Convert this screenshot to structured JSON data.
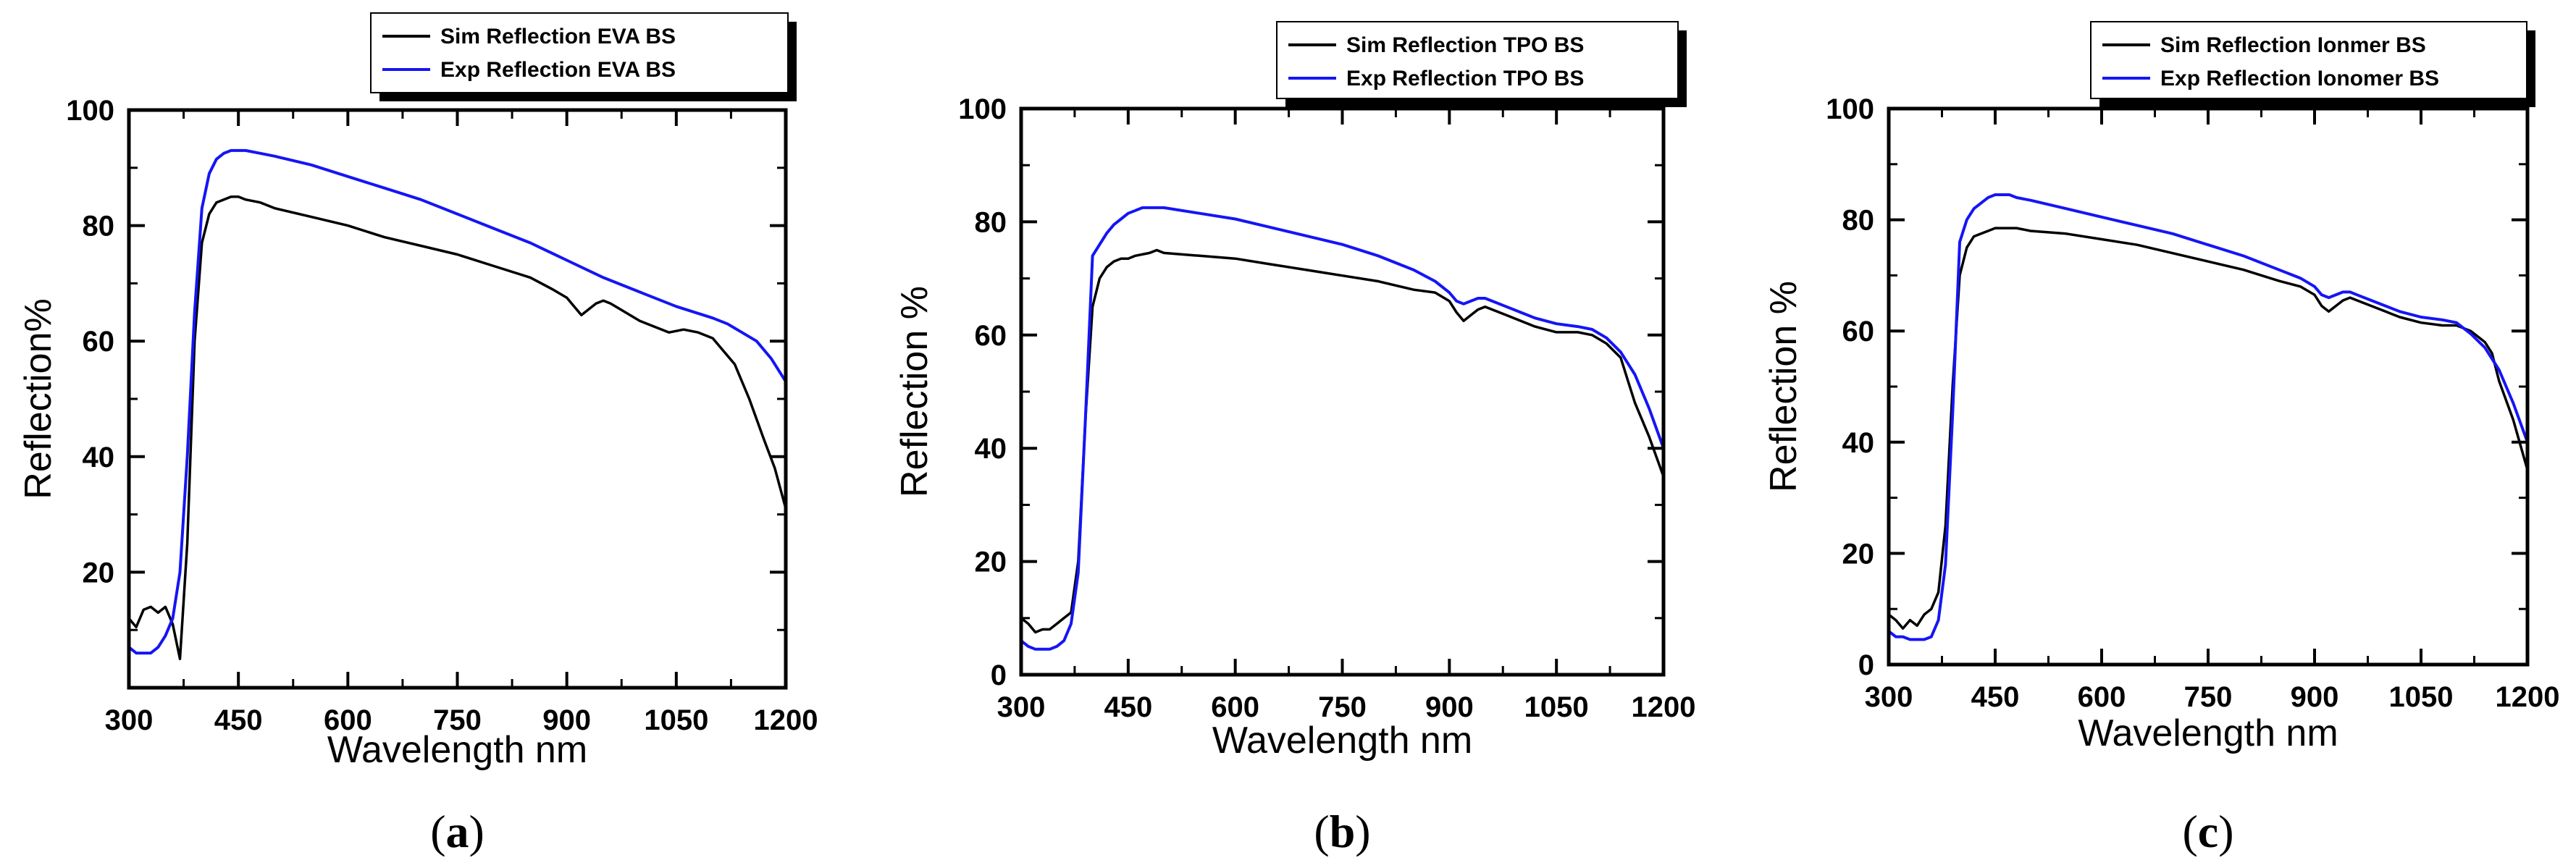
{
  "figure": {
    "panel_labels": [
      "a",
      "b",
      "c"
    ]
  },
  "colors": {
    "sim": "#000000",
    "exp": "#1515f5",
    "axis": "#000000"
  },
  "chart_data": [
    {
      "type": "line",
      "panel": "a",
      "xlabel": "Wavelength nm",
      "ylabel": "Reflection%",
      "xlim": [
        300,
        1200
      ],
      "ylim": [
        0,
        100
      ],
      "xticks": [
        300,
        450,
        600,
        750,
        900,
        1050,
        1200
      ],
      "yticks": [
        0,
        20,
        40,
        60,
        80,
        100
      ],
      "ytick_labels": [
        "",
        "20",
        "40",
        "60",
        "80",
        "100"
      ],
      "legend": [
        "Sim Reflection EVA BS",
        "Exp Reflection EVA BS"
      ],
      "series": [
        {
          "name": "Sim Reflection EVA BS",
          "x": [
            300,
            310,
            320,
            330,
            340,
            350,
            360,
            370,
            380,
            390,
            400,
            410,
            420,
            430,
            440,
            450,
            460,
            480,
            500,
            550,
            600,
            650,
            700,
            750,
            800,
            850,
            880,
            900,
            910,
            920,
            930,
            940,
            950,
            960,
            980,
            1000,
            1020,
            1040,
            1060,
            1080,
            1100,
            1110,
            1130,
            1150,
            1170,
            1185,
            1200
          ],
          "y": [
            12,
            10.5,
            13.5,
            14,
            13,
            14,
            11,
            5,
            25,
            60,
            77,
            82,
            84,
            84.5,
            85,
            85,
            84.5,
            84,
            83,
            81.5,
            80,
            78,
            76.5,
            75,
            73,
            71,
            69,
            67.5,
            66,
            64.5,
            65.5,
            66.5,
            67,
            66.5,
            65,
            63.5,
            62.5,
            61.5,
            62,
            61.5,
            60.5,
            59,
            56,
            50,
            43,
            38,
            31
          ]
        },
        {
          "name": "Exp Reflection EVA BS",
          "x": [
            300,
            310,
            320,
            330,
            340,
            350,
            360,
            370,
            380,
            390,
            400,
            410,
            420,
            430,
            440,
            450,
            460,
            480,
            500,
            550,
            600,
            650,
            700,
            750,
            800,
            850,
            900,
            950,
            1000,
            1050,
            1100,
            1120,
            1140,
            1160,
            1180,
            1200
          ],
          "y": [
            7,
            6,
            6,
            6,
            7,
            9,
            12,
            20,
            40,
            65,
            83,
            89,
            91.5,
            92.5,
            93,
            93,
            93,
            92.5,
            92,
            90.5,
            88.5,
            86.5,
            84.5,
            82,
            79.5,
            77,
            74,
            71,
            68.5,
            66,
            64,
            63,
            61.5,
            60,
            57,
            53
          ]
        }
      ]
    },
    {
      "type": "line",
      "panel": "b",
      "xlabel": "Wavelength nm",
      "ylabel": "Reflection %",
      "xlim": [
        300,
        1200
      ],
      "ylim": [
        0,
        100
      ],
      "xticks": [
        300,
        450,
        600,
        750,
        900,
        1050,
        1200
      ],
      "yticks": [
        0,
        20,
        40,
        60,
        80,
        100
      ],
      "ytick_labels": [
        "0",
        "20",
        "40",
        "60",
        "80",
        "100"
      ],
      "legend": [
        "Sim Reflection TPO BS",
        "Exp Reflection TPO BS"
      ],
      "series": [
        {
          "name": "Sim Reflection TPO BS",
          "x": [
            300,
            310,
            320,
            330,
            340,
            350,
            360,
            370,
            380,
            390,
            400,
            410,
            420,
            430,
            440,
            450,
            460,
            480,
            490,
            500,
            550,
            600,
            650,
            700,
            750,
            800,
            850,
            880,
            900,
            910,
            920,
            930,
            940,
            950,
            960,
            980,
            1000,
            1020,
            1050,
            1080,
            1100,
            1120,
            1140,
            1150,
            1160,
            1180,
            1200
          ],
          "y": [
            10,
            9,
            7.5,
            8,
            8,
            9,
            10,
            11,
            20,
            45,
            65,
            70,
            72,
            73,
            73.5,
            73.5,
            74,
            74.5,
            75,
            74.5,
            74,
            73.5,
            72.5,
            71.5,
            70.5,
            69.5,
            68,
            67.5,
            66,
            64,
            62.5,
            63.5,
            64.5,
            65,
            64.5,
            63.5,
            62.5,
            61.5,
            60.5,
            60.5,
            60,
            58.5,
            56,
            52,
            48,
            42,
            35
          ]
        },
        {
          "name": "Exp Reflection TPO BS",
          "x": [
            300,
            310,
            320,
            330,
            340,
            350,
            360,
            370,
            380,
            390,
            400,
            410,
            420,
            430,
            440,
            450,
            460,
            470,
            480,
            500,
            550,
            600,
            650,
            700,
            750,
            800,
            850,
            880,
            900,
            910,
            920,
            930,
            940,
            950,
            960,
            980,
            1000,
            1020,
            1050,
            1080,
            1100,
            1120,
            1140,
            1160,
            1180,
            1200
          ],
          "y": [
            6,
            5,
            4.5,
            4.5,
            4.5,
            5,
            6,
            9,
            18,
            45,
            74,
            76,
            78,
            79.5,
            80.5,
            81.5,
            82,
            82.5,
            82.5,
            82.5,
            81.5,
            80.5,
            79,
            77.5,
            76,
            74,
            71.5,
            69.5,
            67.5,
            66,
            65.5,
            66,
            66.5,
            66.5,
            66,
            65,
            64,
            63,
            62,
            61.5,
            61,
            59.5,
            57,
            53,
            47,
            40
          ]
        }
      ]
    },
    {
      "type": "line",
      "panel": "c",
      "xlabel": "Wavelength nm",
      "ylabel": "Reflection %",
      "xlim": [
        300,
        1200
      ],
      "ylim": [
        0,
        100
      ],
      "xticks": [
        300,
        450,
        600,
        750,
        900,
        1050,
        1200
      ],
      "yticks": [
        0,
        20,
        40,
        60,
        80,
        100
      ],
      "ytick_labels": [
        "0",
        "20",
        "40",
        "60",
        "80",
        "100"
      ],
      "legend": [
        "Sim Reflection Ionmer BS",
        "Exp Reflection Ionomer BS"
      ],
      "series": [
        {
          "name": "Sim Reflection Ionmer BS",
          "x": [
            300,
            310,
            320,
            330,
            340,
            350,
            360,
            370,
            380,
            390,
            400,
            410,
            420,
            430,
            440,
            450,
            460,
            480,
            500,
            550,
            600,
            650,
            700,
            750,
            800,
            850,
            880,
            900,
            910,
            920,
            930,
            940,
            950,
            960,
            980,
            1000,
            1020,
            1050,
            1080,
            1100,
            1120,
            1140,
            1150,
            1160,
            1180,
            1200
          ],
          "y": [
            9,
            8,
            6.5,
            8,
            7,
            9,
            10,
            13,
            25,
            50,
            70,
            75,
            77,
            77.5,
            78,
            78.5,
            78.5,
            78.5,
            78,
            77.5,
            76.5,
            75.5,
            74,
            72.5,
            71,
            69,
            68,
            66.5,
            64.5,
            63.5,
            64.5,
            65.5,
            66,
            65.5,
            64.5,
            63.5,
            62.5,
            61.5,
            61,
            61,
            60,
            58,
            56,
            51,
            44,
            35
          ]
        },
        {
          "name": "Exp Reflection Ionomer BS",
          "x": [
            300,
            310,
            320,
            330,
            340,
            350,
            360,
            370,
            380,
            390,
            400,
            410,
            420,
            430,
            440,
            450,
            460,
            470,
            480,
            500,
            550,
            600,
            650,
            700,
            750,
            800,
            850,
            880,
            900,
            910,
            920,
            930,
            940,
            950,
            960,
            980,
            1000,
            1020,
            1050,
            1080,
            1100,
            1120,
            1140,
            1160,
            1180,
            1200
          ],
          "y": [
            6,
            5,
            5,
            4.5,
            4.5,
            4.5,
            5,
            8,
            18,
            45,
            76,
            80,
            82,
            83,
            84,
            84.5,
            84.5,
            84.5,
            84,
            83.5,
            82,
            80.5,
            79,
            77.5,
            75.5,
            73.5,
            71,
            69.5,
            68,
            66.5,
            66,
            66.5,
            67,
            67,
            66.5,
            65.5,
            64.5,
            63.5,
            62.5,
            62,
            61.5,
            59.5,
            57,
            53,
            47,
            40
          ]
        }
      ]
    }
  ]
}
